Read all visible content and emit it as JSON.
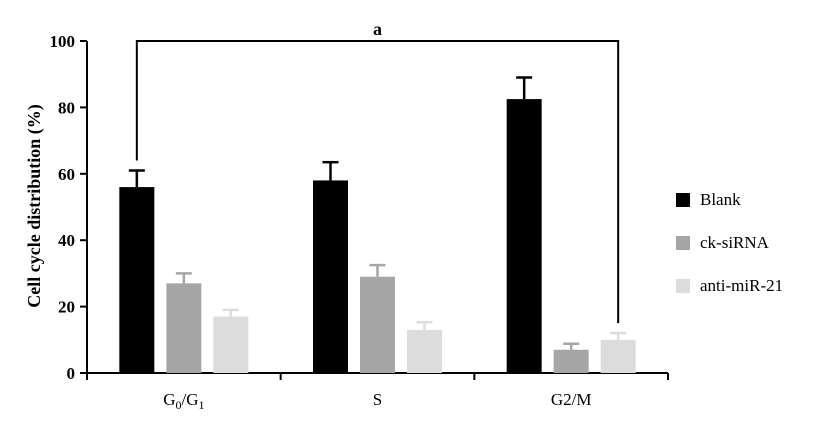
{
  "chart_data": {
    "type": "bar",
    "title": "",
    "xlabel": "",
    "ylabel": "Cell cycle distribution (%)",
    "ylim": [
      0,
      100
    ],
    "yticks": [
      "0",
      "20",
      "40",
      "60",
      "80",
      "100"
    ],
    "categories": [
      {
        "label": "G",
        "sub1": "0",
        "sep": "/G",
        "sub2": "1"
      },
      {
        "label": "S",
        "sub1": "",
        "sep": "",
        "sub2": ""
      },
      {
        "label": "G2/M",
        "sub1": "",
        "sep": "",
        "sub2": ""
      }
    ],
    "series": [
      {
        "name": "Blank",
        "color": "#000000",
        "values": [
          56,
          58,
          82.5
        ],
        "errors": [
          5,
          5.5,
          6.5
        ]
      },
      {
        "name": "ck-siRNA",
        "color": "#a6a6a6",
        "values": [
          27,
          29,
          7
        ],
        "errors": [
          3,
          3.5,
          1.8
        ]
      },
      {
        "name": "anti-miR-21",
        "color": "#dcdcdc",
        "values": [
          17,
          13,
          10
        ],
        "errors": [
          2,
          2.3,
          2
        ]
      }
    ],
    "significance": {
      "label": "a",
      "from_category": 0,
      "to_category": 2
    }
  }
}
